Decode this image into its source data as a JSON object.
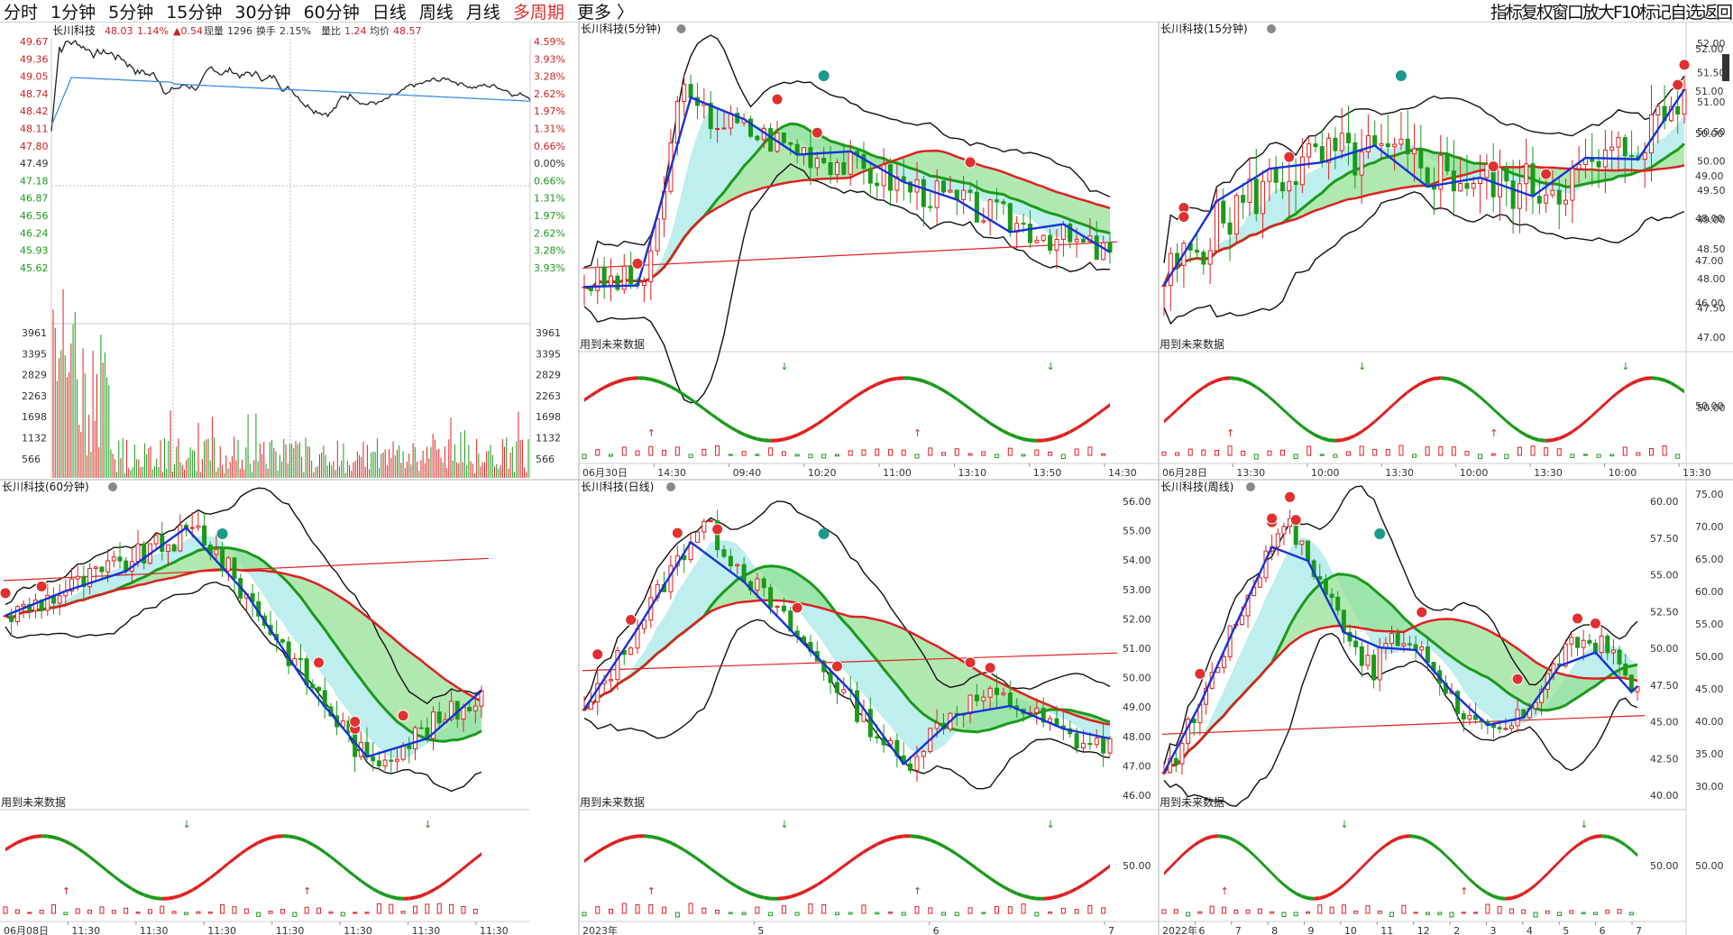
{
  "toolbar": {
    "periods": [
      "分时",
      "1分钟",
      "5分钟",
      "15分钟",
      "30分钟",
      "60分钟",
      "日线",
      "周线",
      "月线",
      "多周期",
      "更多 〉"
    ],
    "active_period": "多周期",
    "right_tools": "指标复权窗口放大F10标记自选返回"
  },
  "colors": {
    "up": "#e02020",
    "down": "#1a9a1a",
    "avg_line": "#3a8ee6",
    "boll": "#111111",
    "cloud_green": "#8ee08e",
    "cloud_cyan": "#a8e8e8"
  },
  "intraday": {
    "title": "长川科技",
    "price": "48.03",
    "pct": "1.14%",
    "chg": "▲0.54",
    "vol_label": "现量",
    "vol": "1296",
    "turn_label": "换手",
    "turn": "2.15%",
    "ratio_label": "量比",
    "ratio": "1.24",
    "avg_label": "均价",
    "avg": "48.57",
    "price_ticks": [
      "49.67",
      "49.36",
      "49.05",
      "48.74",
      "48.42",
      "48.11",
      "47.80",
      "47.49",
      "47.18",
      "46.87",
      "46.56",
      "46.24",
      "45.93",
      "45.62"
    ],
    "pct_ticks": [
      "4.59%",
      "3.93%",
      "3.28%",
      "2.62%",
      "1.97%",
      "1.31%",
      "0.66%",
      "0.00%",
      "0.66%",
      "1.31%",
      "1.97%",
      "2.62%",
      "3.28%",
      "3.93%"
    ],
    "vol_ticks": [
      "3961",
      "3395",
      "2829",
      "2263",
      "1698",
      "1132",
      "566"
    ]
  },
  "panels": [
    {
      "title": "长川科技(5分钟)",
      "ticks": [],
      "note": "用到未来数据",
      "xlabels": [
        "06月30日",
        "14:30",
        "09:40",
        "10:20",
        "11:00",
        "13:10",
        "13:50",
        "14:30"
      ],
      "sub_tick": ""
    },
    {
      "title": "长川科技(15分钟)",
      "ticks": [
        "52.00",
        "51.50",
        "51.00",
        "50.50",
        "50.00",
        "49.50",
        "49.00",
        "48.50",
        "48.00",
        "47.50",
        "47.00"
      ],
      "note": "用到未来数据",
      "xlabels": [
        "06月28日",
        "13:30",
        "10:00",
        "13:30",
        "10:00",
        "13:30",
        "10:00",
        "13:30"
      ],
      "sub_tick": "50.00"
    },
    {
      "title": "长川科技(60分钟)",
      "ticks": [],
      "note": "用到未来数据",
      "xlabels": [
        "06月08日",
        "11:30",
        "11:30",
        "11:30",
        "11:30",
        "11:30",
        "11:30",
        "11:30"
      ],
      "sub_tick": ""
    },
    {
      "title": "长川科技(日线)",
      "ticks": [
        "56.00",
        "55.00",
        "54.00",
        "53.00",
        "52.00",
        "51.00",
        "50.00",
        "49.00",
        "48.00",
        "47.00",
        "46.00"
      ],
      "note": "用到未来数据",
      "xlabels": [
        "2023年",
        "5",
        "6",
        "7"
      ],
      "sub_tick": "50.00"
    },
    {
      "title": "长川科技(周线)",
      "ticks": [
        "60.00",
        "57.50",
        "55.00",
        "52.50",
        "50.00",
        "47.50",
        "45.00",
        "42.50",
        "40.00"
      ],
      "note": "用到未来数据",
      "xlabels": [
        "2022年",
        "6",
        "7",
        "8",
        "9",
        "10",
        "11",
        "12",
        "2",
        "3",
        "4",
        "5",
        "6",
        "7"
      ],
      "sub_tick": "50.00"
    }
  ],
  "right_axis": {
    "ticks": [
      "52.00",
      "51.00",
      "50.00",
      "49.00",
      "48.00",
      "47.00",
      "46.00"
    ],
    "ticks2": [
      "75.00",
      "70.00",
      "65.00",
      "60.00",
      "55.00",
      "50.00",
      "45.00",
      "40.00",
      "35.00",
      "30.00"
    ],
    "sub1": "50.00",
    "sub2": "50.00"
  }
}
